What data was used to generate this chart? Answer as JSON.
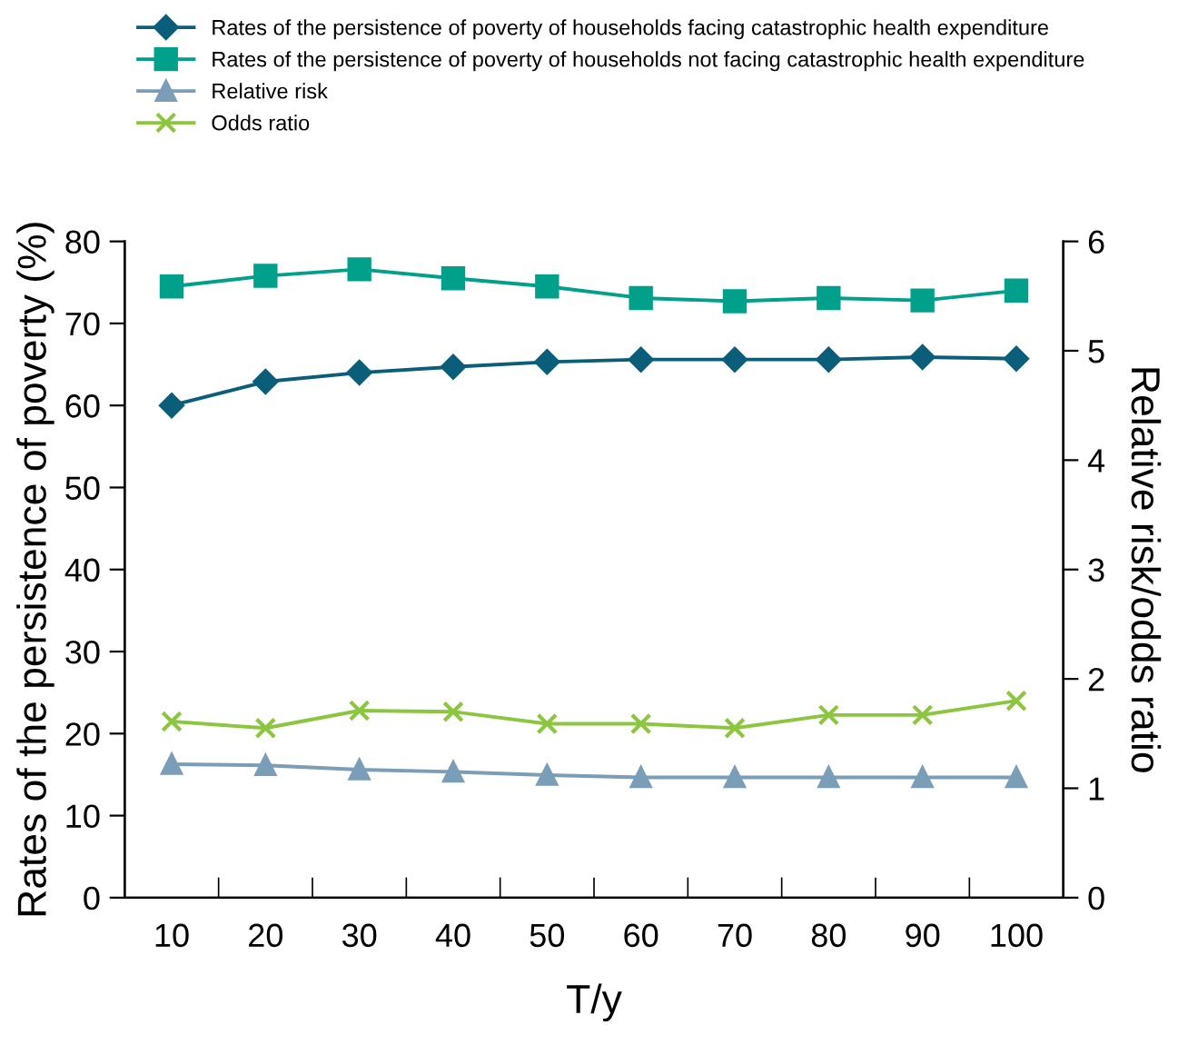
{
  "chart_data": {
    "type": "line",
    "xlabel": "T/y",
    "ylabel": "Rates of the persistence of poverty (%)",
    "y2label": "Relative risk/odds ratio",
    "categories": [
      "10",
      "20",
      "30",
      "40",
      "50",
      "60",
      "70",
      "80",
      "90",
      "100"
    ],
    "series": [
      {
        "name": "Rates of the persistence of poverty of households facing catastrophic health expenditure",
        "color": "#0b5e7a",
        "marker": "diamond",
        "values": [
          60.0,
          62.9,
          64.0,
          64.7,
          65.3,
          65.6,
          65.6,
          65.6,
          65.9,
          65.7
        ]
      },
      {
        "name": "Rates of the persistence of poverty of households not facing catastrophic health expenditure",
        "color": "#00a08a",
        "marker": "square",
        "values": [
          74.5,
          75.8,
          76.6,
          75.5,
          74.5,
          73.1,
          72.7,
          73.1,
          72.8,
          74.0
        ]
      },
      {
        "name": "Relative risk",
        "color": "#7a9db8",
        "marker": "triangle",
        "axis": "y2",
        "values": [
          1.22,
          1.21,
          1.17,
          1.15,
          1.12,
          1.1,
          1.1,
          1.1,
          1.1,
          1.1
        ]
      },
      {
        "name": "Odds ratio",
        "color": "#8cc63f",
        "marker": "cross",
        "axis": "y2",
        "values": [
          1.61,
          1.55,
          1.71,
          1.7,
          1.59,
          1.59,
          1.55,
          1.67,
          1.67,
          1.8
        ]
      }
    ],
    "ylim": [
      0,
      80
    ],
    "yticks": [
      0,
      10,
      20,
      30,
      40,
      50,
      60,
      70,
      80
    ],
    "y2lim": [
      0,
      6
    ],
    "y2ticks": [
      0,
      1,
      2,
      3,
      4,
      5,
      6
    ],
    "grid": false,
    "legend": "top",
    "line_style": "solid"
  }
}
